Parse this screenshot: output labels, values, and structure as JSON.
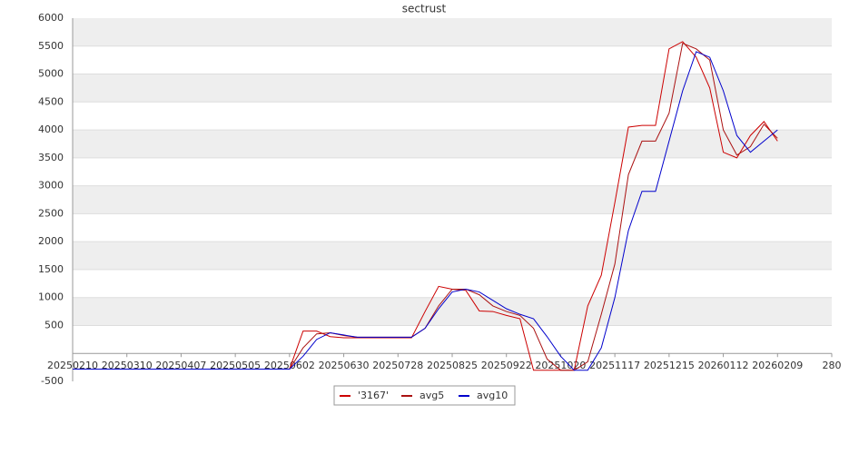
{
  "chart_data": {
    "type": "line",
    "title": "sectrust",
    "categories": [
      "20250210",
      null,
      null,
      null,
      "20250310",
      null,
      null,
      null,
      "20250407",
      null,
      null,
      null,
      "20250505",
      null,
      null,
      null,
      "20250602",
      null,
      null,
      null,
      "20250630",
      null,
      null,
      null,
      "20250728",
      null,
      null,
      null,
      "20250825",
      null,
      null,
      null,
      "20250922",
      null,
      null,
      null,
      "20251020",
      null,
      null,
      null,
      "20251117",
      null,
      null,
      null,
      "20251215",
      null,
      null,
      null,
      "20260112",
      null,
      null,
      null,
      "20260209",
      null,
      null,
      null,
      "280"
    ],
    "series": [
      {
        "name": "'3167'",
        "color": "#cc0000",
        "values": [
          -280,
          -280,
          -280,
          -280,
          -280,
          -280,
          -280,
          -280,
          -280,
          -280,
          -280,
          -280,
          -280,
          -280,
          -280,
          -280,
          -280,
          400,
          400,
          300,
          280,
          280,
          280,
          280,
          280,
          280,
          750,
          1200,
          1150,
          1130,
          760,
          750,
          680,
          620,
          -300,
          -300,
          -300,
          -300,
          850,
          1400,
          2700,
          4050,
          4080,
          4080,
          5450,
          5580,
          5300,
          4750,
          3600,
          3500,
          3900,
          4150,
          3800,
          null,
          null,
          null,
          null
        ]
      },
      {
        "name": "avg5",
        "color": "#aa1111",
        "values": [
          -280,
          -280,
          -280,
          -280,
          -280,
          -280,
          -280,
          -280,
          -280,
          -280,
          -280,
          -280,
          -280,
          -280,
          -280,
          -280,
          -280,
          100,
          350,
          370,
          320,
          290,
          290,
          290,
          290,
          290,
          450,
          850,
          1150,
          1150,
          1050,
          850,
          750,
          680,
          450,
          -100,
          -300,
          -300,
          -150,
          700,
          1600,
          3200,
          3800,
          3800,
          4300,
          5550,
          5450,
          5250,
          4000,
          3550,
          3700,
          4100,
          3850,
          null,
          null,
          null,
          null
        ]
      },
      {
        "name": "avg10",
        "color": "#0000cc",
        "values": [
          -280,
          -280,
          -280,
          -280,
          -280,
          -280,
          -280,
          -280,
          -280,
          -280,
          -280,
          -280,
          -280,
          -280,
          -280,
          -280,
          -280,
          -50,
          250,
          370,
          330,
          290,
          290,
          290,
          290,
          290,
          450,
          800,
          1100,
          1150,
          1100,
          950,
          800,
          700,
          620,
          300,
          -50,
          -300,
          -300,
          100,
          1000,
          2200,
          2900,
          2900,
          3800,
          4700,
          5400,
          5300,
          4700,
          3900,
          3600,
          3800,
          4000,
          null,
          null,
          null,
          null
        ]
      }
    ],
    "ylim": [
      -500,
      6000
    ],
    "yticks": [
      -500,
      500,
      1000,
      1500,
      2000,
      2500,
      3000,
      3500,
      4000,
      4500,
      5000,
      5500,
      6000
    ],
    "grid": "bands",
    "legend": "bottom"
  }
}
